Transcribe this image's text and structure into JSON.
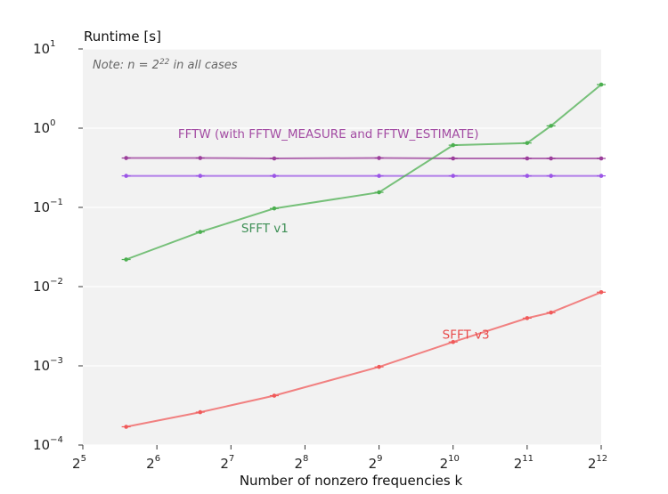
{
  "chart_data": {
    "type": "line",
    "ylabel": "Runtime [s]",
    "xlabel": "Number of nonzero frequencies k",
    "note": {
      "prefix": "Note: n = 2",
      "exp": "22",
      "suffix": " in all cases"
    },
    "x_scale": "log2",
    "y_scale": "log10",
    "xlim": [
      32,
      4096
    ],
    "ylim": [
      0.0001,
      10
    ],
    "x_ticks": [
      {
        "base": "2",
        "exp": "5"
      },
      {
        "base": "2",
        "exp": "6"
      },
      {
        "base": "2",
        "exp": "7"
      },
      {
        "base": "2",
        "exp": "8"
      },
      {
        "base": "2",
        "exp": "9"
      },
      {
        "base": "2",
        "exp": "10"
      },
      {
        "base": "2",
        "exp": "11"
      },
      {
        "base": "2",
        "exp": "12"
      }
    ],
    "y_ticks": [
      {
        "value": 0.0001,
        "base": "10",
        "exp": "−4"
      },
      {
        "value": 0.001,
        "base": "10",
        "exp": "−3"
      },
      {
        "value": 0.01,
        "base": "10",
        "exp": "−2"
      },
      {
        "value": 0.1,
        "base": "10",
        "exp": "−1"
      },
      {
        "value": 1,
        "base": "10",
        "exp": "0"
      },
      {
        "value": 10,
        "base": "10",
        "exp": "1"
      }
    ],
    "grid": true,
    "colors": {
      "fftw_measure": "#9b3e9b",
      "fftw_estimate": "#9b55e6",
      "sfft_v1": "#4caf50",
      "sfft_v3": "#f05a5a",
      "plot_bg": "#f2f2f2"
    },
    "series": [
      {
        "key": "fftw_measure",
        "x": [
          48,
          96,
          192,
          512,
          1024,
          2048,
          2560,
          4096
        ],
        "y": [
          0.42,
          0.42,
          0.415,
          0.42,
          0.415,
          0.415,
          0.415,
          0.415
        ]
      },
      {
        "key": "fftw_estimate",
        "x": [
          48,
          96,
          192,
          512,
          1024,
          2048,
          2560,
          4096
        ],
        "y": [
          0.25,
          0.25,
          0.25,
          0.25,
          0.25,
          0.25,
          0.25,
          0.25
        ]
      },
      {
        "key": "sfft_v1",
        "x": [
          48,
          96,
          192,
          512,
          1024,
          2048,
          2560,
          4096
        ],
        "y": [
          0.022,
          0.049,
          0.097,
          0.155,
          0.61,
          0.65,
          1.07,
          3.55
        ]
      },
      {
        "key": "sfft_v3",
        "x": [
          48,
          96,
          192,
          512,
          1024,
          2048,
          2560,
          4096
        ],
        "y": [
          0.00017,
          0.00026,
          0.00042,
          0.00097,
          0.002,
          0.004,
          0.0047,
          0.0085
        ]
      }
    ],
    "annotations": [
      {
        "text": "FFTW (with FFTW_MEASURE and FFTW_ESTIMATE)",
        "color": "#a34ca3",
        "at": [
          78,
          0.75
        ]
      },
      {
        "text": "SFFT v1",
        "color": "#3d8f55",
        "at": [
          141,
          0.0485
        ]
      },
      {
        "text": "SFFT v3",
        "color": "#e84a4a",
        "at": [
          926,
          0.0022
        ]
      }
    ]
  }
}
